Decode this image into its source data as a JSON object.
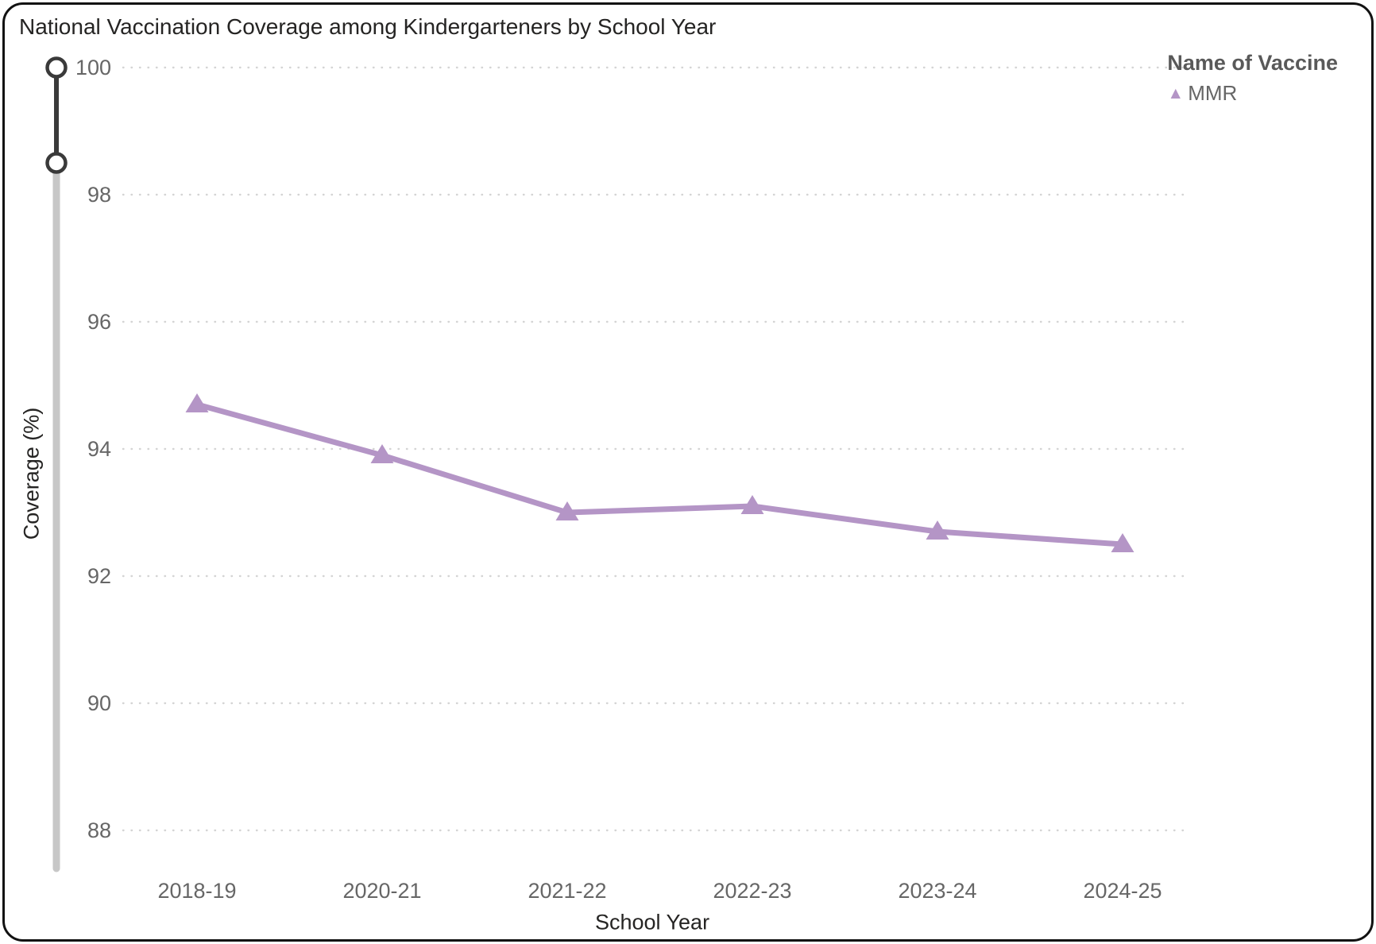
{
  "card": {
    "title": "National Vaccination Coverage among Kindergarteners by School Year"
  },
  "legend": {
    "title": "Name of Vaccine",
    "items": [
      {
        "label": "MMR",
        "color": "#b495c6",
        "marker": "triangle"
      }
    ]
  },
  "slider": {
    "upper_value": 100,
    "lower_value": 98.5
  },
  "chart_data": {
    "type": "line",
    "title": "National Vaccination Coverage among Kindergarteners by School Year",
    "xlabel": "School Year",
    "ylabel": "Coverage (%)",
    "categories": [
      "2018-19",
      "2020-21",
      "2021-22",
      "2022-23",
      "2023-24",
      "2024-25"
    ],
    "series": [
      {
        "name": "MMR",
        "color": "#b495c6",
        "marker": "triangle",
        "values": [
          94.7,
          93.9,
          93.0,
          93.1,
          92.7,
          92.5
        ]
      }
    ],
    "y_ticks": [
      100,
      98,
      96,
      94,
      92,
      90,
      88
    ],
    "ylim": [
      87.3,
      100.3
    ],
    "grid": "horizontal-dotted",
    "legend_position": "top-right",
    "colors": {
      "tick_label": "#666666",
      "gridline": "#d4d4d4",
      "slider_dark": "#3a3a3a",
      "slider_light": "#c7c7c7"
    }
  }
}
